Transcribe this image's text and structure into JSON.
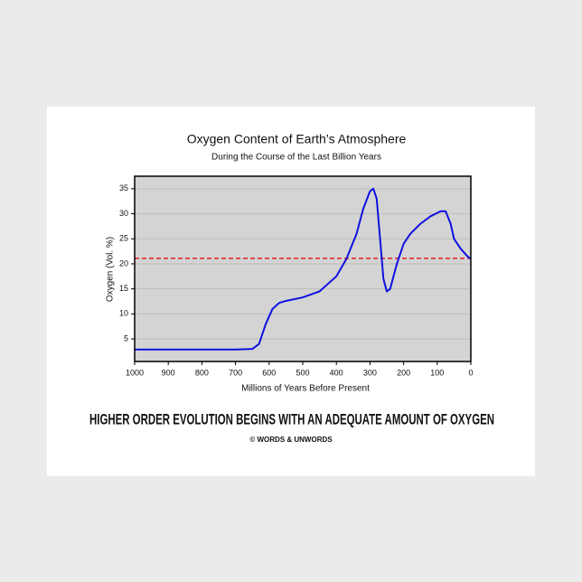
{
  "chart_data": {
    "type": "line",
    "title": "Oxygen Content of Earth’s Atmosphere",
    "subtitle": "During the Course of the Last Billion Years",
    "x_label": "Millions of Years Before Present",
    "y_label": "Oxygen (Vol. %)",
    "x": [
      1000,
      900,
      800,
      700,
      650,
      630,
      610,
      590,
      570,
      550,
      500,
      450,
      400,
      370,
      340,
      320,
      300,
      290,
      280,
      270,
      260,
      250,
      240,
      220,
      200,
      180,
      150,
      120,
      90,
      75,
      60,
      50,
      30,
      10,
      0
    ],
    "values": [
      2.9,
      2.9,
      2.9,
      2.9,
      3,
      4,
      8,
      11,
      12.2,
      12.6,
      13.3,
      14.5,
      17.5,
      21,
      26,
      31,
      34.5,
      35,
      33,
      25,
      17,
      14.5,
      15,
      20,
      24,
      26,
      28,
      29.5,
      30.5,
      30.5,
      28,
      25,
      23,
      21.5,
      21
    ],
    "color": "#1010e0",
    "reference_line": {
      "value": 21.1,
      "color": "#e02020"
    },
    "xlim": [
      1000,
      0
    ],
    "xticks": [
      1000,
      900,
      800,
      700,
      600,
      500,
      400,
      300,
      200,
      100,
      0
    ],
    "ylim": [
      0.5,
      37.5
    ],
    "yticks": [
      5,
      10,
      15,
      20,
      25,
      30,
      35
    ],
    "grid": true
  },
  "caption": "HIGHER ORDER EVOLUTION BEGINS WITH AN ADEQUATE AMOUNT OF OXYGEN",
  "credit": "© WORDS & UNWORDS"
}
